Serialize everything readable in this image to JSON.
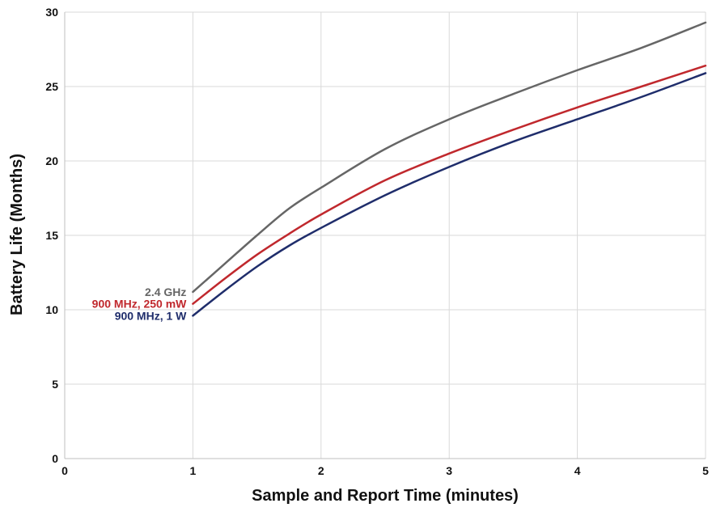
{
  "chart_data": {
    "type": "line",
    "title": "",
    "xlabel": "Sample and Report Time (minutes)",
    "ylabel": "Battery Life (Months)",
    "xlim": [
      0,
      5
    ],
    "ylim": [
      0,
      30
    ],
    "x_ticks": [
      "0",
      "1",
      "2",
      "3",
      "4",
      "5"
    ],
    "y_ticks": [
      "0",
      "5",
      "10",
      "15",
      "20",
      "25",
      "30"
    ],
    "grid": true,
    "legend": "inline labels at series start",
    "series": [
      {
        "name": "2.4 GHz",
        "color": "#666666",
        "x": [
          1,
          1.25,
          1.5,
          1.75,
          2,
          2.5,
          3,
          3.5,
          4,
          4.5,
          5
        ],
        "y": [
          11.2,
          13.1,
          15.0,
          16.8,
          18.2,
          20.8,
          22.8,
          24.5,
          26.1,
          27.6,
          29.3
        ]
      },
      {
        "name": "900 MHz, 250 mW",
        "color": "#c0282d",
        "x": [
          1,
          1.25,
          1.5,
          1.75,
          2,
          2.5,
          3,
          3.5,
          4,
          4.5,
          5
        ],
        "y": [
          10.4,
          12.1,
          13.7,
          15.1,
          16.4,
          18.7,
          20.5,
          22.1,
          23.6,
          25.0,
          26.4
        ]
      },
      {
        "name": "900 MHz, 1 W",
        "color": "#1f2d6b",
        "x": [
          1,
          1.25,
          1.5,
          1.75,
          2,
          2.5,
          3,
          3.5,
          4,
          4.5,
          5
        ],
        "y": [
          9.6,
          11.3,
          12.9,
          14.3,
          15.5,
          17.7,
          19.6,
          21.3,
          22.8,
          24.3,
          25.9
        ]
      }
    ]
  }
}
